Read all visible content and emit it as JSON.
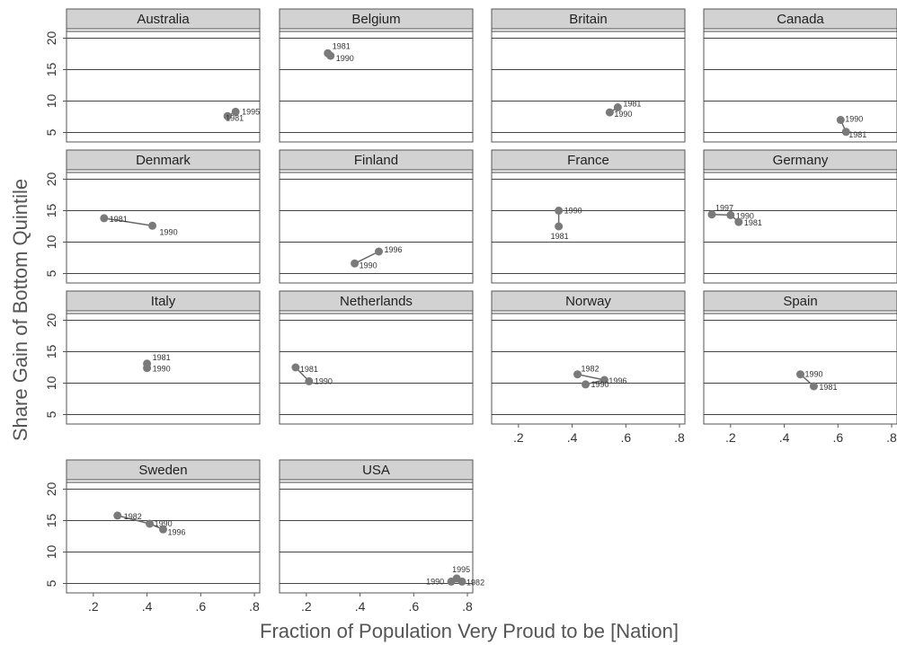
{
  "chart_data": {
    "type": "scatter",
    "xlabel": "Fraction of Population Very Proud to be [Nation]",
    "ylabel": "Share Gain of Bottom Quintile",
    "xlim": [
      0.1,
      0.82
    ],
    "ylim": [
      3.5,
      21.5
    ],
    "xticks": [
      0.2,
      0.4,
      0.6,
      0.8
    ],
    "xtick_labels": [
      ".2",
      ".4",
      ".6",
      ".8"
    ],
    "yticks": [
      5,
      10,
      15,
      20
    ],
    "ytick_labels": [
      "5",
      "10",
      "15",
      "20"
    ],
    "grid": true,
    "panels": [
      {
        "name": "Australia",
        "points": [
          {
            "x": 0.73,
            "y": 8.3,
            "label": "1995"
          },
          {
            "x": 0.7,
            "y": 7.6,
            "label": "1981"
          }
        ]
      },
      {
        "name": "Belgium",
        "points": [
          {
            "x": 0.28,
            "y": 17.6,
            "label": "1981"
          },
          {
            "x": 0.29,
            "y": 17.2,
            "label": "1990"
          }
        ]
      },
      {
        "name": "Britain",
        "points": [
          {
            "x": 0.57,
            "y": 9.0,
            "label": "1981"
          },
          {
            "x": 0.54,
            "y": 8.2,
            "label": "1990"
          }
        ]
      },
      {
        "name": "Canada",
        "points": [
          {
            "x": 0.61,
            "y": 7.0,
            "label": "1990"
          },
          {
            "x": 0.63,
            "y": 5.1,
            "label": "1981"
          }
        ]
      },
      {
        "name": "Denmark",
        "points": [
          {
            "x": 0.24,
            "y": 13.8,
            "label": "1981"
          },
          {
            "x": 0.42,
            "y": 12.6,
            "label": "1990"
          }
        ]
      },
      {
        "name": "Finland",
        "points": [
          {
            "x": 0.47,
            "y": 8.5,
            "label": "1996"
          },
          {
            "x": 0.38,
            "y": 6.6,
            "label": "1990"
          }
        ]
      },
      {
        "name": "France",
        "points": [
          {
            "x": 0.35,
            "y": 15.0,
            "label": "1990"
          },
          {
            "x": 0.35,
            "y": 12.5,
            "label": "1981"
          }
        ]
      },
      {
        "name": "Germany",
        "points": [
          {
            "x": 0.13,
            "y": 14.4,
            "label": "1997"
          },
          {
            "x": 0.2,
            "y": 14.3,
            "label": "1990"
          },
          {
            "x": 0.23,
            "y": 13.2,
            "label": "1981"
          }
        ]
      },
      {
        "name": "Italy",
        "points": [
          {
            "x": 0.4,
            "y": 13.1,
            "label": "1981"
          },
          {
            "x": 0.4,
            "y": 12.4,
            "label": "1990"
          }
        ]
      },
      {
        "name": "Netherlands",
        "points": [
          {
            "x": 0.16,
            "y": 12.5,
            "label": "1981"
          },
          {
            "x": 0.21,
            "y": 10.3,
            "label": "1990"
          }
        ]
      },
      {
        "name": "Norway",
        "points": [
          {
            "x": 0.42,
            "y": 11.4,
            "label": "1982"
          },
          {
            "x": 0.52,
            "y": 10.5,
            "label": "1996"
          },
          {
            "x": 0.45,
            "y": 9.8,
            "label": "1990"
          }
        ]
      },
      {
        "name": "Spain",
        "points": [
          {
            "x": 0.46,
            "y": 11.4,
            "label": "1990"
          },
          {
            "x": 0.51,
            "y": 9.5,
            "label": "1981"
          }
        ]
      },
      {
        "name": "Sweden",
        "points": [
          {
            "x": 0.29,
            "y": 15.8,
            "label": "1982"
          },
          {
            "x": 0.41,
            "y": 14.5,
            "label": "1990"
          },
          {
            "x": 0.46,
            "y": 13.6,
            "label": "1996"
          }
        ]
      },
      {
        "name": "USA",
        "points": [
          {
            "x": 0.76,
            "y": 5.8,
            "label": "1995"
          },
          {
            "x": 0.74,
            "y": 5.3,
            "label": "1990"
          },
          {
            "x": 0.78,
            "y": 5.3,
            "label": "1982"
          }
        ]
      }
    ]
  }
}
